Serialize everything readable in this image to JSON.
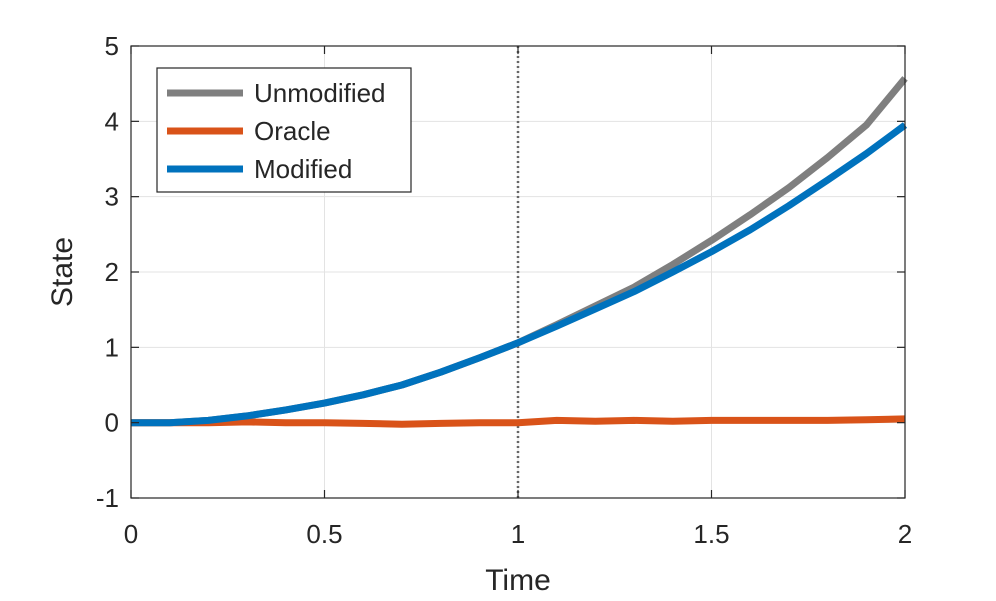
{
  "chart_data": {
    "type": "line",
    "title": "",
    "xlabel": "Time",
    "ylabel": "State",
    "xlim": [
      0,
      2
    ],
    "ylim": [
      -1,
      5
    ],
    "xticks": [
      0,
      0.5,
      1,
      1.5,
      2
    ],
    "xtick_labels": [
      "0",
      "0.5",
      "1",
      "1.5",
      "2"
    ],
    "yticks": [
      -1,
      0,
      1,
      2,
      3,
      4,
      5
    ],
    "ytick_labels": [
      "-1",
      "0",
      "1",
      "2",
      "3",
      "4",
      "5"
    ],
    "grid": true,
    "legend_position": "top-left",
    "vertical_reference_line": {
      "x": 1,
      "style": "dotted",
      "color": "#666666"
    },
    "series": [
      {
        "name": "Unmodified",
        "color": "#7f7f7f",
        "x": [
          0,
          0.1,
          0.2,
          0.3,
          0.4,
          0.5,
          0.6,
          0.7,
          0.8,
          0.9,
          1.0,
          1.1,
          1.2,
          1.3,
          1.4,
          1.5,
          1.6,
          1.7,
          1.8,
          1.9,
          2.0
        ],
        "y": [
          0,
          0.0,
          0.03,
          0.09,
          0.17,
          0.26,
          0.37,
          0.5,
          0.67,
          0.86,
          1.06,
          1.3,
          1.55,
          1.8,
          2.1,
          2.42,
          2.76,
          3.12,
          3.52,
          3.95,
          4.57
        ]
      },
      {
        "name": "Oracle",
        "color": "#d95319",
        "x": [
          0,
          0.1,
          0.2,
          0.3,
          0.4,
          0.5,
          0.6,
          0.7,
          0.8,
          0.9,
          1.0,
          1.1,
          1.2,
          1.3,
          1.4,
          1.5,
          1.6,
          1.7,
          1.8,
          1.9,
          2.0
        ],
        "y": [
          0,
          0.0,
          0.0,
          0.01,
          0.0,
          0.0,
          -0.01,
          -0.02,
          -0.01,
          0.0,
          0.0,
          0.03,
          0.02,
          0.03,
          0.02,
          0.03,
          0.03,
          0.03,
          0.03,
          0.04,
          0.05
        ]
      },
      {
        "name": "Modified",
        "color": "#0072bd",
        "x": [
          0,
          0.1,
          0.2,
          0.3,
          0.4,
          0.5,
          0.6,
          0.7,
          0.8,
          0.9,
          1.0,
          1.1,
          1.2,
          1.3,
          1.4,
          1.5,
          1.6,
          1.7,
          1.8,
          1.9,
          2.0
        ],
        "y": [
          0,
          0.0,
          0.03,
          0.09,
          0.17,
          0.26,
          0.37,
          0.5,
          0.67,
          0.86,
          1.06,
          1.28,
          1.51,
          1.74,
          2.0,
          2.27,
          2.56,
          2.88,
          3.22,
          3.57,
          3.95
        ]
      }
    ]
  }
}
